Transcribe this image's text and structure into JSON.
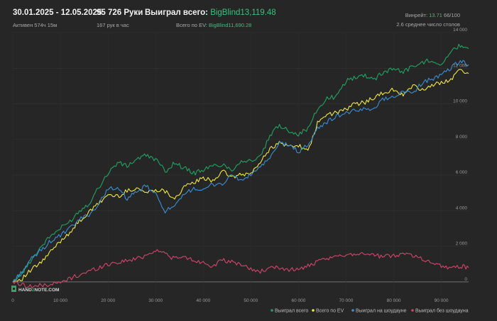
{
  "header": {
    "date_range": "30.01.2025 - 12.05.2025",
    "active": "Активен 574ч 15м",
    "hands": "95 726 Руки",
    "hands_per_hour": "167 рук в час",
    "won_label": "Выиграл всего:",
    "won_value": "BigBlind13,119.48",
    "ev_label": "Всего по EV:",
    "ev_value": "BigBlind11,690.28",
    "winrate_label": "Винрейт:",
    "winrate_value": "13.71",
    "winrate_suffix": "66/100",
    "tables": "2.6 среднее число столов"
  },
  "logo": {
    "text_left": "HAND",
    "text_mid": "2",
    "text_right": "NOTE.COM"
  },
  "colors": {
    "background": "#262626",
    "won_total": "#1fa463",
    "ev_total": "#f0ea3a",
    "showdown": "#3a8fd6",
    "non_showdown": "#d4456a",
    "accent": "#3fbf7f"
  },
  "chart_data": {
    "type": "line",
    "title": "",
    "xlabel": "",
    "ylabel": "",
    "xlim": [
      0,
      95726
    ],
    "ylim": [
      -800,
      14000
    ],
    "x_ticks": [
      "0",
      "10 000",
      "20 000",
      "30 000",
      "40 000",
      "50 000",
      "60 000",
      "70 000",
      "80 000",
      "90 000"
    ],
    "y_ticks": [
      "14 000",
      "12 000",
      "10 000",
      "8 000",
      "6 000",
      "4 000",
      "2 000",
      "0"
    ],
    "legend_position": "bottom-right",
    "x": [
      0,
      2000,
      4000,
      6000,
      8000,
      10000,
      12000,
      14000,
      16000,
      18000,
      20000,
      22000,
      24000,
      26000,
      28000,
      30000,
      32000,
      34000,
      36000,
      38000,
      40000,
      42000,
      44000,
      46000,
      48000,
      50000,
      52000,
      54000,
      56000,
      58000,
      60000,
      62000,
      64000,
      66000,
      68000,
      70000,
      72000,
      74000,
      76000,
      78000,
      80000,
      82000,
      84000,
      86000,
      88000,
      90000,
      92000,
      94000,
      95726
    ],
    "series": [
      {
        "name": "Выиграл всего",
        "color": "#1fa463",
        "values": [
          0,
          500,
          1300,
          2000,
          2600,
          3000,
          3400,
          4000,
          4400,
          5300,
          6100,
          6700,
          6500,
          6900,
          7100,
          6900,
          6200,
          6700,
          6400,
          6100,
          6300,
          6500,
          6600,
          6300,
          6800,
          6800,
          7000,
          8200,
          8800,
          8500,
          8300,
          8600,
          9700,
          10300,
          10400,
          11300,
          11500,
          11600,
          11400,
          11800,
          12000,
          11800,
          12100,
          12300,
          12500,
          12200,
          12900,
          13300,
          13100
        ]
      },
      {
        "name": "Всего по EV",
        "color": "#f0ea3a",
        "values": [
          0,
          200,
          700,
          1100,
          1700,
          2300,
          2800,
          3400,
          3900,
          4400,
          4900,
          4800,
          5100,
          5300,
          5000,
          5200,
          5100,
          4700,
          5300,
          5600,
          5800,
          5700,
          6200,
          5900,
          6000,
          6100,
          6700,
          7500,
          7800,
          7600,
          7700,
          7300,
          8900,
          9400,
          9500,
          9700,
          10000,
          10100,
          10400,
          10600,
          10800,
          10500,
          11000,
          10800,
          11000,
          11200,
          11400,
          11900,
          11700
        ]
      },
      {
        "name": "Выиграл на шоудауне",
        "color": "#3a8fd6",
        "values": [
          0,
          600,
          1300,
          1800,
          2300,
          2600,
          3000,
          3500,
          3800,
          4300,
          5300,
          5200,
          4700,
          5000,
          5400,
          4900,
          4000,
          4200,
          4900,
          5300,
          5100,
          5500,
          5500,
          6000,
          5700,
          6000,
          6500,
          6900,
          7800,
          7700,
          7300,
          7700,
          8600,
          9000,
          9300,
          9500,
          9600,
          9700,
          9800,
          10300,
          10400,
          10700,
          10600,
          11200,
          11400,
          11600,
          12000,
          12400,
          12200
        ]
      },
      {
        "name": "Выиграл без шоудауна",
        "color": "#d4456a",
        "values": [
          0,
          -150,
          -250,
          -200,
          -120,
          -50,
          200,
          400,
          600,
          800,
          1000,
          1100,
          1200,
          1300,
          1500,
          1800,
          1600,
          1300,
          1400,
          1200,
          1100,
          900,
          1200,
          1100,
          1000,
          700,
          600,
          750,
          800,
          700,
          700,
          900,
          1100,
          1300,
          1400,
          1550,
          1600,
          1600,
          1500,
          1400,
          1500,
          1600,
          1500,
          1300,
          1100,
          900,
          800,
          900,
          800
        ]
      }
    ]
  }
}
